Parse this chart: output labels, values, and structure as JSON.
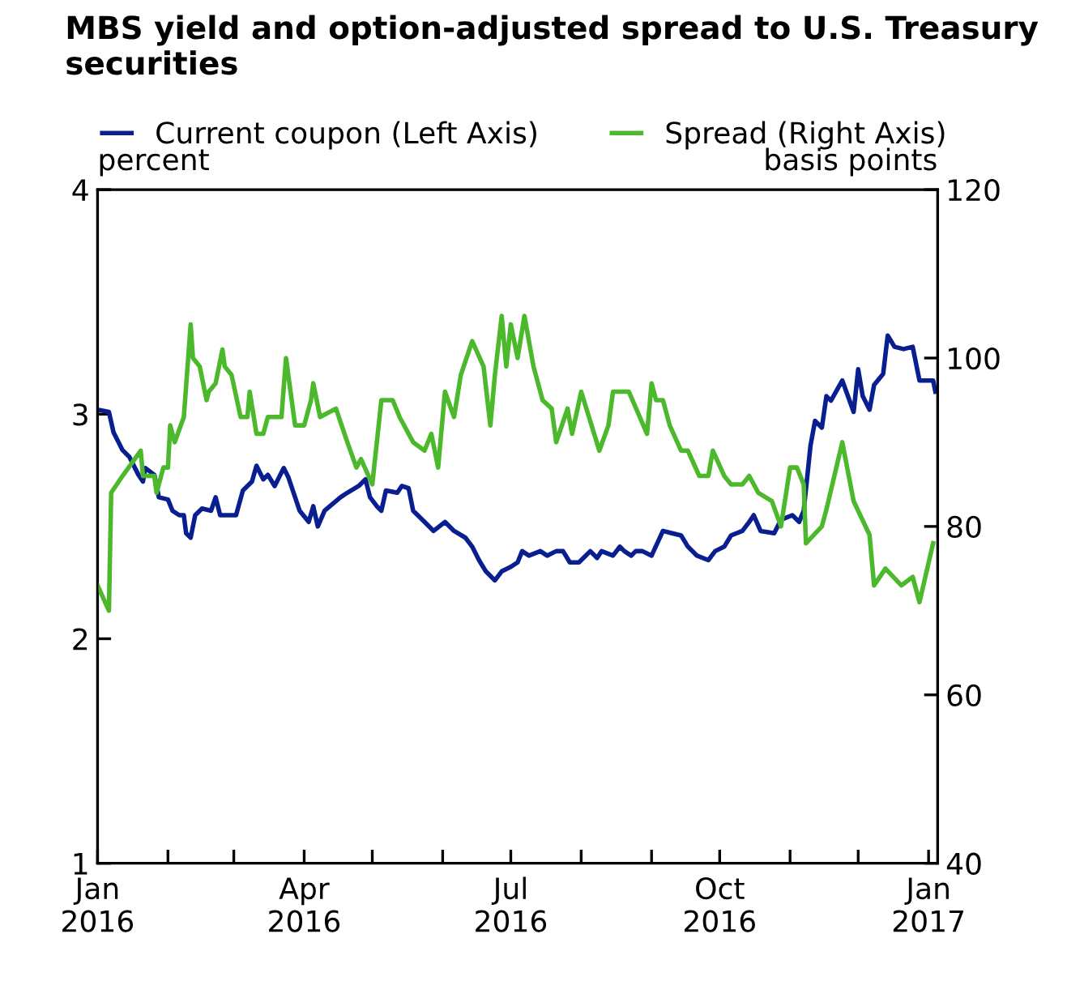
{
  "chart_data": {
    "type": "line",
    "title": "MBS yield and option-adjusted spread to U.S. Treasury securities",
    "ylabel": "percent",
    "y2label": "basis points",
    "xlim": [
      "2016-01-01",
      "2017-01-05"
    ],
    "xticks": [
      {
        "value": "2016-01-01",
        "label": "Jan\n2016"
      },
      {
        "value": "2016-02-01",
        "label": null
      },
      {
        "value": "2016-03-01",
        "label": null
      },
      {
        "value": "2016-04-01",
        "label": "Apr\n2016"
      },
      {
        "value": "2016-05-01",
        "label": null
      },
      {
        "value": "2016-06-01",
        "label": null
      },
      {
        "value": "2016-07-01",
        "label": "Jul\n2016"
      },
      {
        "value": "2016-08-01",
        "label": null
      },
      {
        "value": "2016-09-01",
        "label": null
      },
      {
        "value": "2016-10-01",
        "label": "Oct\n2016"
      },
      {
        "value": "2016-11-01",
        "label": null
      },
      {
        "value": "2016-12-01",
        "label": null
      },
      {
        "value": "2017-01-01",
        "label": "Jan\n2017"
      }
    ],
    "ylim": [
      1,
      4
    ],
    "yticks": [
      1,
      2,
      3,
      4
    ],
    "y2lim": [
      40,
      120
    ],
    "y2ticks": [
      40,
      60,
      80,
      100,
      120
    ],
    "grid": false,
    "legend": "top",
    "marker": "none",
    "line_style": "solid",
    "series": [
      {
        "name": "Current coupon (Left Axis)",
        "color": "#0a1f8f",
        "axis": "y",
        "x": [
          "2016-01-01",
          "2016-01-06",
          "2016-01-08",
          "2016-01-12",
          "2016-01-15",
          "2016-01-19",
          "2016-01-21",
          "2016-01-22",
          "2016-01-26",
          "2016-01-28",
          "2016-02-01",
          "2016-02-03",
          "2016-02-06",
          "2016-02-08",
          "2016-02-09",
          "2016-02-11",
          "2016-02-13",
          "2016-02-16",
          "2016-02-20",
          "2016-02-22",
          "2016-02-24",
          "2016-03-02",
          "2016-03-05",
          "2016-03-09",
          "2016-03-11",
          "2016-03-14",
          "2016-03-16",
          "2016-03-19",
          "2016-03-23",
          "2016-03-25",
          "2016-03-28",
          "2016-03-30",
          "2016-04-03",
          "2016-04-05",
          "2016-04-07",
          "2016-04-10",
          "2016-04-17",
          "2016-04-20",
          "2016-04-25",
          "2016-04-28",
          "2016-04-30",
          "2016-05-03",
          "2016-05-05",
          "2016-05-07",
          "2016-05-12",
          "2016-05-14",
          "2016-05-17",
          "2016-05-19",
          "2016-05-24",
          "2016-05-28",
          "2016-06-02",
          "2016-06-06",
          "2016-06-11",
          "2016-06-14",
          "2016-06-17",
          "2016-06-20",
          "2016-06-24",
          "2016-06-27",
          "2016-07-01",
          "2016-07-04",
          "2016-07-06",
          "2016-07-09",
          "2016-07-14",
          "2016-07-17",
          "2016-07-21",
          "2016-07-24",
          "2016-07-27",
          "2016-07-31",
          "2016-08-03",
          "2016-08-05",
          "2016-08-08",
          "2016-08-10",
          "2016-08-15",
          "2016-08-18",
          "2016-08-20",
          "2016-08-23",
          "2016-08-25",
          "2016-08-28",
          "2016-09-01",
          "2016-09-06",
          "2016-09-10",
          "2016-09-14",
          "2016-09-17",
          "2016-09-21",
          "2016-09-26",
          "2016-09-29",
          "2016-10-03",
          "2016-10-06",
          "2016-10-11",
          "2016-10-14",
          "2016-10-16",
          "2016-10-19",
          "2016-10-25",
          "2016-10-28",
          "2016-11-02",
          "2016-11-05",
          "2016-11-07",
          "2016-11-10",
          "2016-11-12",
          "2016-11-15",
          "2016-11-17",
          "2016-11-19",
          "2016-11-24",
          "2016-11-29",
          "2016-12-01",
          "2016-12-03",
          "2016-12-06",
          "2016-12-08",
          "2016-12-12",
          "2016-12-14",
          "2016-12-17",
          "2016-12-21",
          "2016-12-25",
          "2016-12-28",
          "2017-01-03",
          "2017-01-04"
        ],
        "values": [
          3.02,
          3.01,
          2.92,
          2.84,
          2.81,
          2.73,
          2.7,
          2.76,
          2.73,
          2.63,
          2.62,
          2.57,
          2.55,
          2.55,
          2.47,
          2.45,
          2.55,
          2.58,
          2.57,
          2.63,
          2.55,
          2.55,
          2.66,
          2.7,
          2.77,
          2.71,
          2.73,
          2.68,
          2.76,
          2.72,
          2.63,
          2.57,
          2.52,
          2.59,
          2.5,
          2.57,
          2.63,
          2.65,
          2.68,
          2.71,
          2.63,
          2.59,
          2.57,
          2.66,
          2.65,
          2.68,
          2.67,
          2.57,
          2.52,
          2.48,
          2.52,
          2.48,
          2.45,
          2.41,
          2.35,
          2.3,
          2.26,
          2.3,
          2.32,
          2.34,
          2.39,
          2.37,
          2.39,
          2.37,
          2.39,
          2.39,
          2.34,
          2.34,
          2.37,
          2.39,
          2.36,
          2.39,
          2.37,
          2.41,
          2.39,
          2.37,
          2.39,
          2.39,
          2.37,
          2.48,
          2.47,
          2.46,
          2.41,
          2.37,
          2.35,
          2.39,
          2.41,
          2.46,
          2.48,
          2.52,
          2.55,
          2.48,
          2.47,
          2.53,
          2.55,
          2.52,
          2.57,
          2.86,
          2.97,
          2.94,
          3.08,
          3.06,
          3.15,
          3.01,
          3.2,
          3.08,
          3.02,
          3.13,
          3.18,
          3.35,
          3.3,
          3.29,
          3.3,
          3.15,
          3.15,
          3.1
        ]
      },
      {
        "name": "Spread (Right Axis)",
        "color": "#4cb82c",
        "axis": "y2",
        "x": [
          "2016-01-01",
          "2016-01-06",
          "2016-01-07",
          "2016-01-12",
          "2016-01-20",
          "2016-01-21",
          "2016-01-26",
          "2016-01-27",
          "2016-01-30",
          "2016-02-01",
          "2016-02-02",
          "2016-02-04",
          "2016-02-08",
          "2016-02-11",
          "2016-02-12",
          "2016-02-15",
          "2016-02-18",
          "2016-02-19",
          "2016-02-22",
          "2016-02-25",
          "2016-02-26",
          "2016-02-29",
          "2016-03-04",
          "2016-03-07",
          "2016-03-08",
          "2016-03-11",
          "2016-03-14",
          "2016-03-16",
          "2016-03-18",
          "2016-03-22",
          "2016-03-24",
          "2016-03-28",
          "2016-04-01",
          "2016-04-04",
          "2016-04-05",
          "2016-04-08",
          "2016-04-15",
          "2016-04-20",
          "2016-04-24",
          "2016-04-26",
          "2016-05-01",
          "2016-05-05",
          "2016-05-10",
          "2016-05-13",
          "2016-05-19",
          "2016-05-24",
          "2016-05-27",
          "2016-05-30",
          "2016-06-02",
          "2016-06-06",
          "2016-06-09",
          "2016-06-14",
          "2016-06-19",
          "2016-06-22",
          "2016-06-24",
          "2016-06-27",
          "2016-06-29",
          "2016-07-01",
          "2016-07-04",
          "2016-07-07",
          "2016-07-11",
          "2016-07-15",
          "2016-07-19",
          "2016-07-21",
          "2016-07-26",
          "2016-07-28",
          "2016-08-01",
          "2016-08-09",
          "2016-08-13",
          "2016-08-15",
          "2016-08-22",
          "2016-08-30",
          "2016-09-01",
          "2016-09-03",
          "2016-09-06",
          "2016-09-09",
          "2016-09-14",
          "2016-09-17",
          "2016-09-22",
          "2016-09-26",
          "2016-09-28",
          "2016-10-03",
          "2016-10-06",
          "2016-10-11",
          "2016-10-14",
          "2016-10-18",
          "2016-10-24",
          "2016-10-28",
          "2016-11-01",
          "2016-11-04",
          "2016-11-07",
          "2016-11-08",
          "2016-11-15",
          "2016-11-17",
          "2016-11-24",
          "2016-11-29",
          "2016-12-06",
          "2016-12-08",
          "2016-12-13",
          "2016-12-20",
          "2016-12-25",
          "2016-12-28",
          "2017-01-03"
        ],
        "values": [
          73,
          70,
          84,
          86,
          89,
          86,
          86,
          84,
          87,
          87,
          92,
          90,
          93,
          104,
          100,
          99,
          95,
          96,
          97,
          101,
          99,
          98,
          93,
          93,
          96,
          91,
          91,
          93,
          93,
          93,
          100,
          92,
          92,
          95,
          97,
          93,
          94,
          90,
          87,
          88,
          85,
          95,
          95,
          93,
          90,
          89,
          91,
          87,
          96,
          93,
          98,
          102,
          99,
          92,
          98,
          105,
          99,
          104,
          100,
          105,
          99,
          95,
          94,
          90,
          94,
          91,
          96,
          89,
          92,
          96,
          96,
          91,
          97,
          95,
          95,
          92,
          89,
          89,
          86,
          86,
          89,
          86,
          85,
          85,
          86,
          84,
          83,
          80,
          87,
          87,
          85,
          78,
          80,
          82,
          90,
          83,
          79,
          73,
          75,
          73,
          74,
          71,
          78
        ]
      }
    ]
  }
}
